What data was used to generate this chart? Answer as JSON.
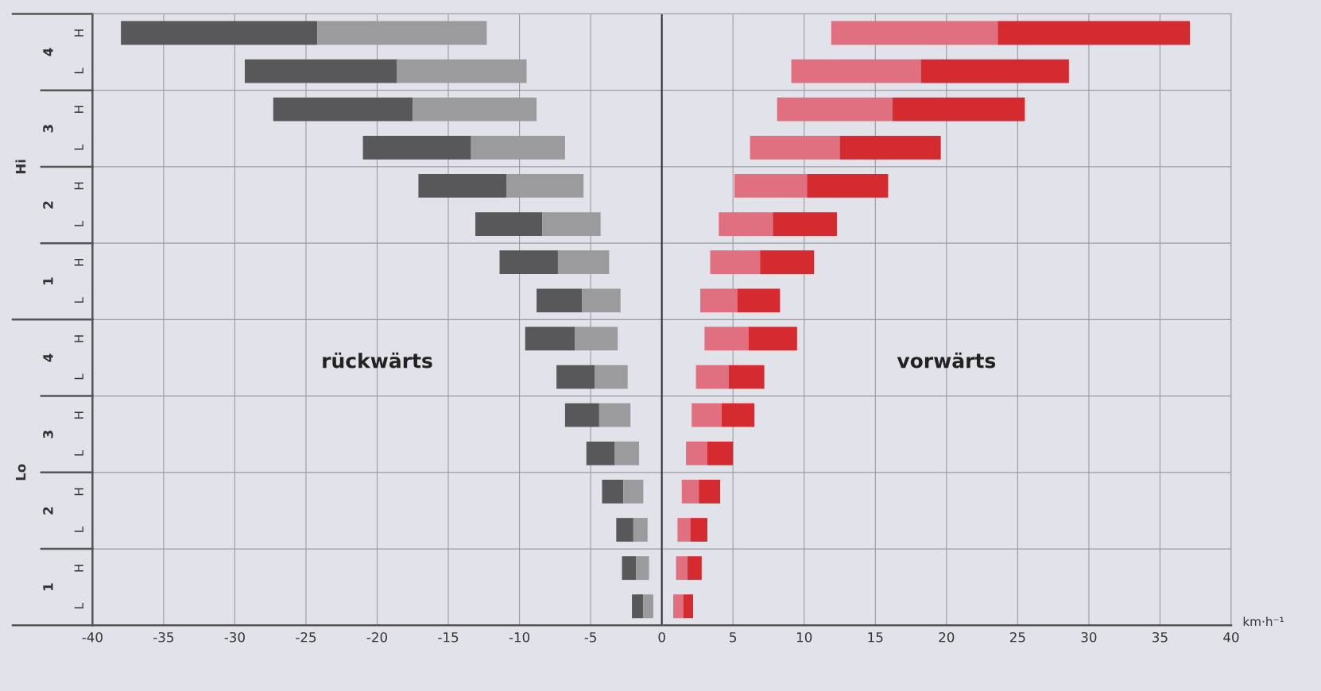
{
  "chart_data": {
    "type": "bar",
    "orientation": "horizontal",
    "xlabel": "km·h⁻¹",
    "categories": [
      "H",
      "L",
      "H",
      "L",
      "H",
      "L",
      "H",
      "L",
      "H",
      "L",
      "H",
      "L",
      "H",
      "L",
      "H",
      "L"
    ],
    "series": [
      {
        "color": "#58585a",
        "base": [
          -38.0,
          -29.3,
          -27.3,
          -21.0,
          -17.1,
          -13.1,
          -11.4,
          -8.8,
          -9.6,
          -7.4,
          -6.8,
          -5.3,
          -4.2,
          -3.2,
          -2.8,
          -2.1
        ],
        "values": [
          13.8,
          10.7,
          9.8,
          7.6,
          6.2,
          4.7,
          4.1,
          3.2,
          3.5,
          2.7,
          2.4,
          2.0,
          1.5,
          1.2,
          1.0,
          0.8
        ]
      },
      {
        "color": "#9b9b9e",
        "base": [
          -24.2,
          -18.6,
          -17.5,
          -13.4,
          -10.9,
          -8.4,
          -7.3,
          -5.6,
          -6.1,
          -4.7,
          -4.4,
          -3.3,
          -2.7,
          -2.0,
          -1.8,
          -1.3
        ],
        "values": [
          11.9,
          9.1,
          8.7,
          6.6,
          5.4,
          4.1,
          3.6,
          2.7,
          3.0,
          2.3,
          2.2,
          1.7,
          1.4,
          1.0,
          0.9,
          0.7
        ]
      },
      {
        "color": "#e0707f",
        "base": [
          11.9,
          9.1,
          8.1,
          6.2,
          5.1,
          4.0,
          3.4,
          2.7,
          3.0,
          2.4,
          2.1,
          1.7,
          1.4,
          1.1,
          1.0,
          0.8
        ],
        "values": [
          11.7,
          9.1,
          8.1,
          6.3,
          5.1,
          3.8,
          3.5,
          2.6,
          3.1,
          2.3,
          2.1,
          1.5,
          1.2,
          0.9,
          0.8,
          0.7
        ]
      },
      {
        "color": "#d42a30",
        "base": [
          23.6,
          18.2,
          16.2,
          12.5,
          10.2,
          7.8,
          6.9,
          5.3,
          6.1,
          4.7,
          4.2,
          3.2,
          2.6,
          2.0,
          1.8,
          1.5
        ],
        "values": [
          13.5,
          10.4,
          9.3,
          7.1,
          5.7,
          4.5,
          3.8,
          3.0,
          3.4,
          2.5,
          2.3,
          1.8,
          1.5,
          1.2,
          1.0,
          0.7
        ]
      }
    ],
    "xlim": [
      -40,
      40
    ],
    "xticks": [
      -40,
      -35,
      -30,
      -25,
      -20,
      -15,
      -10,
      -5,
      0,
      5,
      10,
      15,
      20,
      25,
      30,
      35,
      40
    ],
    "ref_lines": [
      {
        "axis": "x",
        "value": 0,
        "color": "#333333"
      }
    ],
    "grid": "x",
    "annotations": [
      "4",
      "3",
      "2",
      "1",
      "4",
      "3",
      "2",
      "1",
      "Hi",
      "Lo",
      "rückwärts",
      "vorwärts"
    ]
  }
}
